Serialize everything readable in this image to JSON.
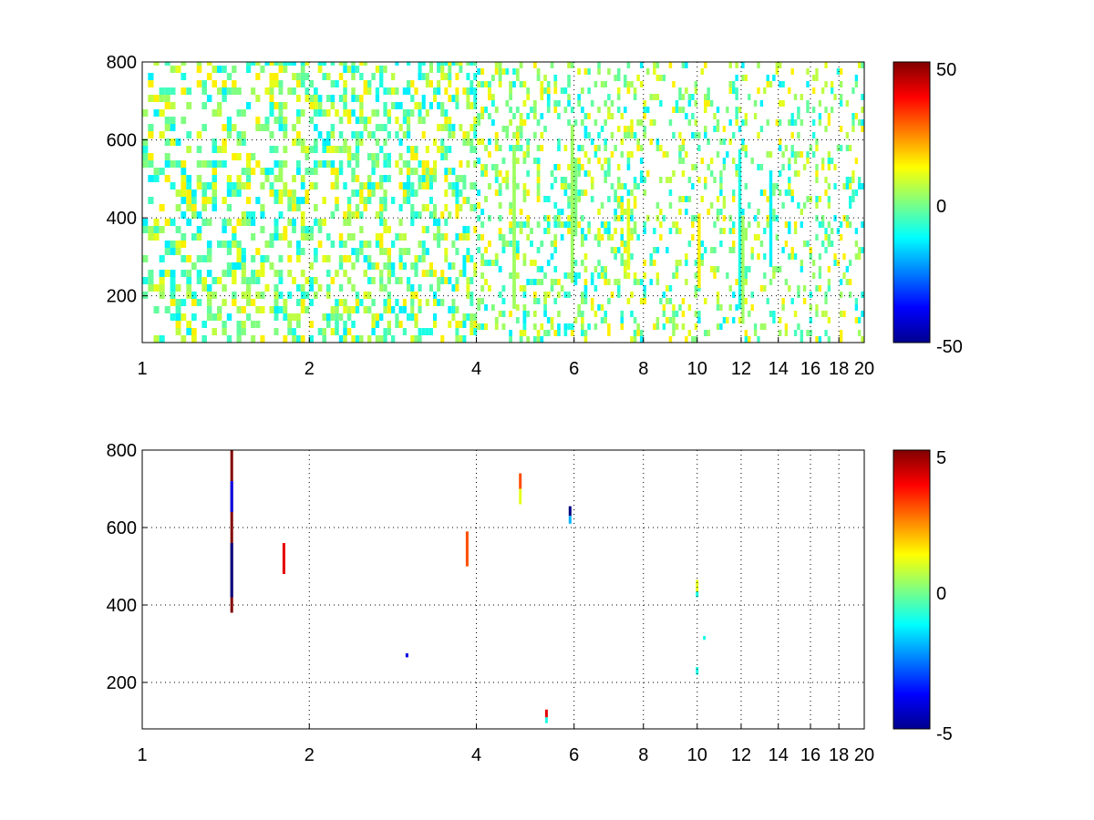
{
  "chart_data": [
    {
      "type": "heatmap",
      "xlim": [
        1,
        20
      ],
      "ylim": [
        80,
        800
      ],
      "x_scale": "log",
      "x_ticks": [
        1,
        2,
        4,
        6,
        8,
        10,
        12,
        14,
        16,
        18,
        20
      ],
      "x_tick_labels": [
        "1",
        "2",
        "4",
        "6",
        "8",
        "10",
        "12",
        "14",
        "16",
        "18",
        "20"
      ],
      "y_ticks": [
        200,
        400,
        600,
        800
      ],
      "y_tick_labels": [
        "200",
        "400",
        "600",
        "800"
      ],
      "grid": true,
      "colormap": "jet",
      "clim": [
        -50,
        50
      ],
      "colorbar_tick_labels": [
        "50",
        "0",
        "-50"
      ],
      "xlabel": "",
      "ylabel": "",
      "title": ""
    },
    {
      "type": "heatmap",
      "xlim": [
        1,
        20
      ],
      "ylim": [
        80,
        800
      ],
      "x_scale": "log",
      "x_ticks": [
        1,
        2,
        4,
        6,
        8,
        10,
        12,
        14,
        16,
        18,
        20
      ],
      "x_tick_labels": [
        "1",
        "2",
        "4",
        "6",
        "8",
        "10",
        "12",
        "14",
        "16",
        "18",
        "20"
      ],
      "y_ticks": [
        200,
        400,
        600,
        800
      ],
      "y_tick_labels": [
        "200",
        "400",
        "600",
        "800"
      ],
      "grid": true,
      "colormap": "jet",
      "clim": [
        -5,
        5
      ],
      "colorbar_tick_labels": [
        "5",
        "0",
        "-5"
      ],
      "xlabel": "",
      "ylabel": "",
      "title": "",
      "cells": [
        {
          "x": 1.45,
          "y0": 380,
          "y1": 800,
          "v": 5
        },
        {
          "x": 1.45,
          "y0": 420,
          "y1": 560,
          "v": -5
        },
        {
          "x": 1.45,
          "y0": 640,
          "y1": 720,
          "v": -4
        },
        {
          "x": 1.8,
          "y0": 480,
          "y1": 560,
          "v": 4
        },
        {
          "x": 3.0,
          "y0": 265,
          "y1": 275,
          "v": -4
        },
        {
          "x": 3.85,
          "y0": 500,
          "y1": 590,
          "v": 3
        },
        {
          "x": 4.8,
          "y0": 700,
          "y1": 740,
          "v": 3
        },
        {
          "x": 4.8,
          "y0": 660,
          "y1": 700,
          "v": 1
        },
        {
          "x": 5.35,
          "y0": 110,
          "y1": 130,
          "v": 4
        },
        {
          "x": 5.35,
          "y0": 95,
          "y1": 110,
          "v": -1
        },
        {
          "x": 5.9,
          "y0": 630,
          "y1": 655,
          "v": -5
        },
        {
          "x": 5.9,
          "y0": 610,
          "y1": 630,
          "v": -2
        },
        {
          "x": 10.0,
          "y0": 435,
          "y1": 465,
          "v": 1
        },
        {
          "x": 10.0,
          "y0": 420,
          "y1": 435,
          "v": -1
        },
        {
          "x": 10.3,
          "y0": 310,
          "y1": 320,
          "v": -1
        },
        {
          "x": 10.0,
          "y0": 220,
          "y1": 240,
          "v": -1
        }
      ]
    }
  ]
}
